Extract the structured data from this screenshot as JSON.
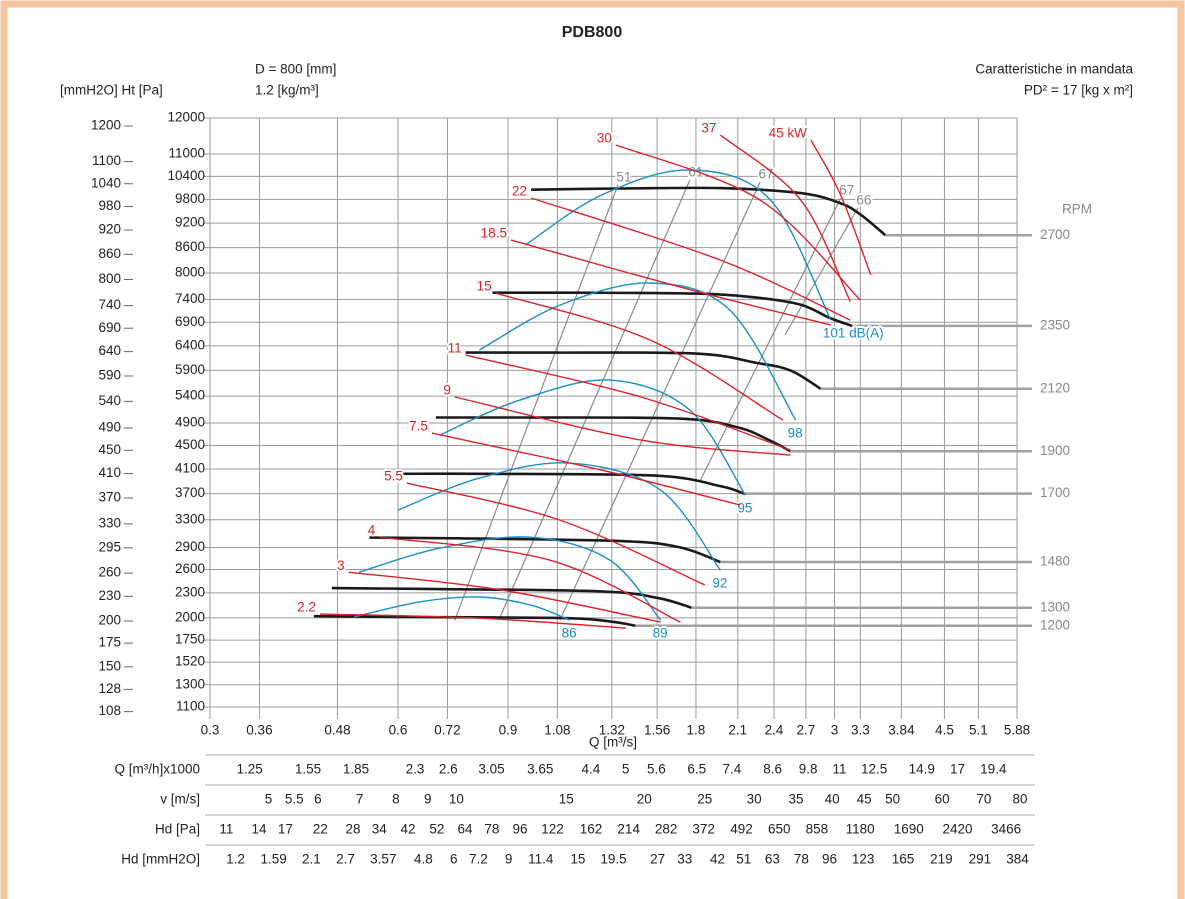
{
  "chart_data": {
    "type": "line",
    "title": "PDB800",
    "annotations": [
      "D = 800 [mm]",
      "1.2 [kg/m³]",
      "Caratteristiche in mandata",
      "PD² = 17 [kg x m²]"
    ],
    "ylabel": "[mmH2O] Ht [Pa]",
    "xlabel": "Q [m³/s]",
    "rpm_label": "RPM",
    "xscale": "log",
    "yscale": "sqrt",
    "grid": true,
    "xlim": [
      0.3,
      5.88
    ],
    "xticks": [
      0.3,
      0.36,
      0.48,
      0.6,
      0.72,
      0.9,
      1.08,
      1.32,
      1.56,
      1.8,
      2.1,
      2.4,
      2.7,
      3,
      3.3,
      3.84,
      4.5,
      5.1,
      5.88
    ],
    "ylim": [
      1100,
      12000
    ],
    "yticks": [
      12000,
      11000,
      10400,
      9800,
      9200,
      8600,
      8000,
      7400,
      6900,
      6400,
      5900,
      5400,
      4900,
      4500,
      4100,
      3700,
      3300,
      2900,
      2600,
      2300,
      2000,
      1750,
      1520,
      1300,
      1100
    ],
    "y2lim": [
      112,
      1223
    ],
    "y2ticks": [
      1200,
      1100,
      1040,
      980,
      920,
      860,
      800,
      740,
      690,
      640,
      590,
      540,
      490,
      450,
      410,
      370,
      330,
      295,
      260,
      230,
      200,
      175,
      150,
      128,
      108
    ],
    "speed_color": "#1a1a1a",
    "leader_color": "#a0a0a0",
    "speed_series": [
      {
        "name": "2700",
        "x": [
          0.98,
          1.36,
          1.97,
          2.65,
          3.07,
          3.31,
          3.62
        ],
        "values": [
          10050,
          10080,
          10090,
          9960,
          9700,
          9400,
          8900
        ]
      },
      {
        "name": "2350",
        "x": [
          0.85,
          1.16,
          1.8,
          2.25,
          2.65,
          2.95,
          3.2
        ],
        "values": [
          7550,
          7550,
          7530,
          7440,
          7280,
          6990,
          6820
        ]
      },
      {
        "name": "2120",
        "x": [
          0.77,
          1.05,
          1.8,
          2.25,
          2.55,
          2.85
        ],
        "values": [
          6260,
          6260,
          6240,
          6050,
          5900,
          5540
        ]
      },
      {
        "name": "1900",
        "x": [
          0.69,
          0.94,
          1.69,
          2.1,
          2.35,
          2.55
        ],
        "values": [
          5000,
          5000,
          4980,
          4820,
          4600,
          4400
        ]
      },
      {
        "name": "1700",
        "x": [
          0.61,
          0.83,
          1.55,
          1.97,
          2.15
        ],
        "values": [
          4020,
          4020,
          3990,
          3820,
          3700
        ]
      },
      {
        "name": "1480",
        "x": [
          0.54,
          0.75,
          1.37,
          1.7,
          1.97
        ],
        "values": [
          3040,
          3030,
          2990,
          2900,
          2700
        ]
      },
      {
        "name": "1300",
        "x": [
          0.47,
          0.67,
          1.26,
          1.56,
          1.77
        ],
        "values": [
          2360,
          2350,
          2320,
          2240,
          2120
        ]
      },
      {
        "name": "1200",
        "x": [
          0.44,
          0.6,
          1.08,
          1.31,
          1.44
        ],
        "values": [
          2020,
          2010,
          2000,
          1960,
          1910
        ]
      }
    ],
    "power_color": "#d9232a",
    "power_series": [
      {
        "name": "2.2",
        "x": [
          0.45,
          0.81,
          1.39
        ],
        "values": [
          2044,
          1997,
          1883
        ]
      },
      {
        "name": "3",
        "x": [
          0.5,
          0.88,
          1.58
        ],
        "values": [
          2565,
          2335,
          1951
        ]
      },
      {
        "name": "4",
        "x": [
          0.56,
          1.05,
          1.7
        ],
        "values": [
          3046,
          2726,
          1951
        ]
      },
      {
        "name": "5.5",
        "x": [
          0.62,
          1.09,
          1.86
        ],
        "values": [
          3869,
          3295,
          2400
        ]
      },
      {
        "name": "7.5",
        "x": [
          0.68,
          1.27,
          2.12
        ],
        "values": [
          4717,
          4082,
          3522
        ]
      },
      {
        "name": "9",
        "x": [
          0.74,
          1.47,
          2.55
        ],
        "values": [
          5382,
          4594,
          4334
        ]
      },
      {
        "name": "11",
        "x": [
          0.77,
          1.47,
          2.55
        ],
        "values": [
          6209,
          5382,
          4420
        ]
      },
      {
        "name": "15",
        "x": [
          0.86,
          1.52,
          2.48
        ],
        "values": [
          7541,
          6521,
          4952
        ]
      },
      {
        "name": "18.5",
        "x": [
          0.91,
          1.77,
          2.96
        ],
        "values": [
          8783,
          7609,
          6840
        ]
      },
      {
        "name": "22",
        "x": [
          0.98,
          1.97,
          3.18
        ],
        "values": [
          9834,
          8303,
          6946
        ]
      },
      {
        "name": "30",
        "x": [
          1.34,
          2.28,
          3.3
        ],
        "values": [
          11245,
          9782,
          7385
        ]
      },
      {
        "name": "37",
        "x": [
          1.97,
          2.65,
          3.18
        ],
        "values": [
          11520,
          9780,
          7350
        ]
      },
      {
        "name": "45 kW",
        "x": [
          2.75,
          3.07,
          3.43
        ],
        "values": [
          11383,
          9910,
          7953
        ]
      }
    ],
    "noise_color": "#1a8fc6",
    "noise_series": [
      {
        "name": "86",
        "x": [
          0.51,
          0.65,
          0.81,
          0.98,
          1.13
        ],
        "values": [
          2010,
          2190,
          2250,
          2150,
          1975
        ]
      },
      {
        "name": "89",
        "x": [
          0.52,
          0.7,
          0.98,
          1.31,
          1.58
        ],
        "values": [
          2565,
          2891,
          3046,
          2726,
          1974
        ]
      },
      {
        "name": "92",
        "x": [
          0.6,
          0.81,
          1.13,
          1.58,
          1.97
        ],
        "values": [
          3446,
          3950,
          4199,
          3756,
          2593
        ]
      },
      {
        "name": "95",
        "x": [
          0.7,
          0.94,
          1.31,
          1.76,
          2.16
        ],
        "values": [
          4682,
          5324,
          5709,
          5137,
          3677
        ]
      },
      {
        "name": "98",
        "x": [
          0.81,
          1.09,
          1.52,
          2.04,
          2.6
        ],
        "values": [
          6312,
          7274,
          7769,
          7164,
          4952
        ]
      },
      {
        "name": "101 dB(A)",
        "x": [
          0.96,
          1.27,
          1.76,
          2.37,
          2.96
        ],
        "values": [
          8662,
          9910,
          10568,
          9782,
          6946
        ]
      }
    ],
    "efficiency_color": "#8a8a8a",
    "efficiency_series": [
      {
        "name": "51",
        "x": [
          0.74,
          1.35
        ],
        "values": [
          1974,
          10170
        ]
      },
      {
        "name": "61",
        "x": [
          0.87,
          1.76
        ],
        "values": [
          1974,
          10302
        ]
      },
      {
        "name": "67",
        "x": [
          1.09,
          2.28
        ],
        "values": [
          1974,
          10250
        ]
      },
      {
        "name": "67",
        "x": [
          1.83,
          3.07
        ],
        "values": [
          3918,
          9834
        ]
      },
      {
        "name": "66",
        "x": [
          2.5,
          3.27
        ],
        "values": [
          6626,
          9579
        ]
      }
    ],
    "scales": [
      {
        "label": "Q [m³/h]x1000",
        "xlim": [
          1.08,
          21.17
        ],
        "ticks": [
          1.25,
          1.55,
          1.85,
          2.3,
          2.6,
          3.05,
          3.65,
          4.4,
          5,
          5.6,
          6.5,
          7.4,
          8.6,
          9.8,
          11,
          12.5,
          14.9,
          17,
          19.4
        ]
      },
      {
        "label": "v [m/s]",
        "xlim": [
          4.03,
          79.1
        ],
        "ticks": [
          5,
          5.5,
          6,
          7,
          8,
          9,
          10,
          15,
          20,
          25,
          30,
          35,
          40,
          45,
          50,
          60,
          70,
          80
        ]
      },
      {
        "label": "Hd [Pa]",
        "xlim": [
          9.75,
          3754
        ],
        "ticks": [
          11,
          14,
          17,
          22,
          28,
          34,
          42,
          52,
          64,
          78,
          96,
          122,
          162,
          214,
          282,
          372,
          492,
          650,
          858,
          1180,
          1690,
          2420,
          3466
        ]
      },
      {
        "label": "Hd [mmH2O]",
        "xlim": [
          0.994,
          382.7
        ],
        "ticks": [
          1.2,
          1.59,
          2.1,
          2.7,
          3.57,
          4.8,
          6,
          7.2,
          9,
          11.4,
          15,
          19.5,
          27,
          33,
          42,
          51,
          63,
          78,
          96,
          123,
          165,
          219,
          291,
          384
        ]
      }
    ]
  }
}
